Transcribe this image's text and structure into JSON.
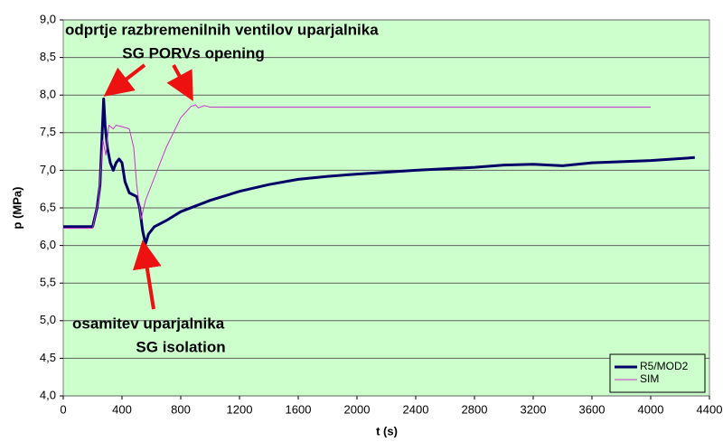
{
  "chart_data": {
    "type": "line",
    "xlabel": "t (s)",
    "ylabel": "p (MPa)",
    "xlim": [
      0,
      4400
    ],
    "xticks": [
      0,
      400,
      800,
      1200,
      1600,
      2000,
      2400,
      2800,
      3200,
      3600,
      4000,
      4400
    ],
    "ylim": [
      4.0,
      9.0
    ],
    "yticks": [
      {
        "value": 4.0,
        "label": "4,0"
      },
      {
        "value": 4.5,
        "label": "4,5"
      },
      {
        "value": 5.0,
        "label": "5,0"
      },
      {
        "value": 5.5,
        "label": "5,5"
      },
      {
        "value": 6.0,
        "label": "6,0"
      },
      {
        "value": 6.5,
        "label": "6,5"
      },
      {
        "value": 7.0,
        "label": "7,0"
      },
      {
        "value": 7.5,
        "label": "7,5"
      },
      {
        "value": 8.0,
        "label": "8,0"
      },
      {
        "value": 8.5,
        "label": "8,5"
      },
      {
        "value": 9.0,
        "label": "9,0"
      }
    ],
    "grid": true,
    "legend": "lower right",
    "annotations": [
      "odprtje razbremenilnih ventilov uparjalnika",
      "SG PORVs opening",
      "osamitev uparjalnika",
      "SG isolation"
    ],
    "series": [
      {
        "name": "R5/MOD2",
        "color": "#000066",
        "width": 3,
        "x": [
          0,
          200,
          230,
          250,
          265,
          275,
          285,
          300,
          320,
          340,
          360,
          380,
          400,
          420,
          450,
          500,
          520,
          540,
          560,
          580,
          620,
          700,
          800,
          1000,
          1200,
          1400,
          1600,
          1800,
          2000,
          2400,
          2800,
          3000,
          3200,
          3400,
          3600,
          4000,
          4300
        ],
        "values": [
          6.25,
          6.25,
          6.5,
          6.8,
          7.5,
          7.95,
          7.6,
          7.3,
          7.1,
          7.0,
          7.1,
          7.15,
          7.1,
          6.85,
          6.7,
          6.65,
          6.5,
          6.2,
          6.02,
          6.15,
          6.25,
          6.33,
          6.45,
          6.6,
          6.72,
          6.81,
          6.88,
          6.92,
          6.95,
          7.0,
          7.04,
          7.07,
          7.08,
          7.06,
          7.1,
          7.13,
          7.17
        ]
      },
      {
        "name": "SIM",
        "color": "#cc33cc",
        "width": 1,
        "x": [
          0,
          200,
          240,
          270,
          290,
          310,
          340,
          360,
          400,
          450,
          480,
          500,
          530,
          560,
          600,
          700,
          800,
          870,
          900,
          920,
          960,
          1000,
          4000
        ],
        "values": [
          6.23,
          6.23,
          6.6,
          7.4,
          7.2,
          7.6,
          7.55,
          7.6,
          7.58,
          7.55,
          7.3,
          6.8,
          6.35,
          6.6,
          6.8,
          7.3,
          7.7,
          7.85,
          7.87,
          7.83,
          7.86,
          7.84,
          7.84
        ]
      }
    ]
  }
}
